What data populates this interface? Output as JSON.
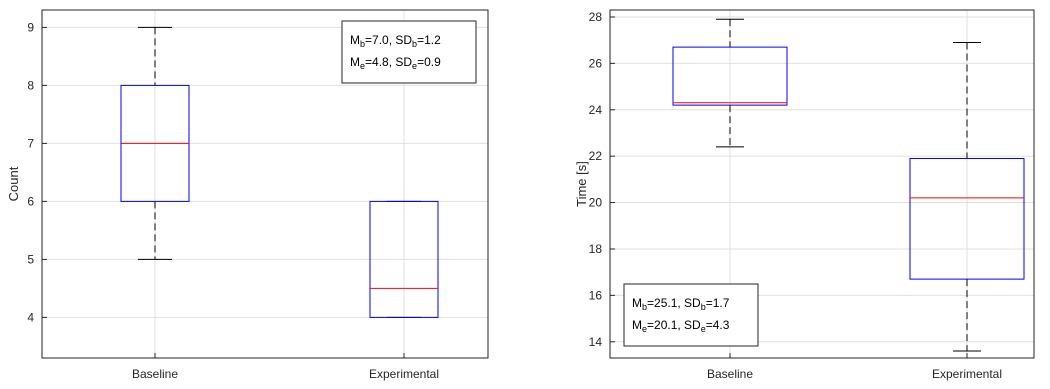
{
  "chart_data": [
    {
      "type": "box",
      "categories": [
        "Baseline",
        "Experimental"
      ],
      "xlabel": "",
      "ylabel": "Count",
      "ylim": [
        3.3,
        9.3
      ],
      "yticks": [
        4,
        5,
        6,
        7,
        8,
        9
      ],
      "grid": true,
      "boxes": [
        {
          "category": "Baseline",
          "whisker_low": 5,
          "q1": 6,
          "median": 7,
          "q3": 8,
          "whisker_high": 9
        },
        {
          "category": "Experimental",
          "whisker_low": 4,
          "q1": 4,
          "median": 4.5,
          "q3": 6,
          "whisker_high": 6
        }
      ],
      "annotation": {
        "placement": "top-right",
        "lines": [
          [
            {
              "t": "M"
            },
            {
              "t": "b",
              "sub": true
            },
            {
              "t": "=7.0, SD"
            },
            {
              "t": "b",
              "sub": true
            },
            {
              "t": "=1.2"
            }
          ],
          [
            {
              "t": "M"
            },
            {
              "t": "e",
              "sub": true
            },
            {
              "t": "=4.8, SD"
            },
            {
              "t": "e",
              "sub": true
            },
            {
              "t": "=0.9"
            }
          ]
        ]
      }
    },
    {
      "type": "box",
      "categories": [
        "Baseline",
        "Experimental"
      ],
      "xlabel": "",
      "ylabel": "Time [s]",
      "ylim": [
        13.3,
        28.3
      ],
      "yticks": [
        14,
        16,
        18,
        20,
        22,
        24,
        26,
        28
      ],
      "grid": true,
      "boxes": [
        {
          "category": "Baseline",
          "whisker_low": 22.4,
          "q1": 24.2,
          "median": 24.3,
          "q3": 26.7,
          "whisker_high": 27.9
        },
        {
          "category": "Experimental",
          "whisker_low": 13.6,
          "q1": 16.7,
          "median": 20.2,
          "q3": 21.9,
          "whisker_high": 26.9
        }
      ],
      "annotation": {
        "placement": "bottom-left",
        "lines": [
          [
            {
              "t": "M"
            },
            {
              "t": "b",
              "sub": true
            },
            {
              "t": "=25.1, SD"
            },
            {
              "t": "b",
              "sub": true
            },
            {
              "t": "=1.7"
            }
          ],
          [
            {
              "t": "M"
            },
            {
              "t": "e",
              "sub": true
            },
            {
              "t": "=20.1, SD"
            },
            {
              "t": "e",
              "sub": true
            },
            {
              "t": "=4.3"
            }
          ]
        ]
      }
    }
  ],
  "colors": {
    "box": "#0000ff",
    "median": "#ff0000",
    "whisker": "#000000",
    "grid": "#e0e0e0",
    "axes": "#262626",
    "tick_text": "#262626"
  }
}
